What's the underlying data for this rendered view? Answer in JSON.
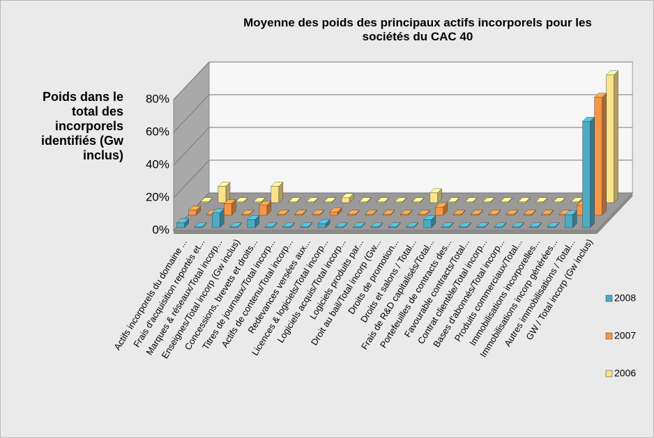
{
  "chart_data": {
    "type": "bar3d",
    "title": "Moyenne des poids des principaux actifs incorporels pour les sociétés du CAC 40",
    "y_label": "Poids dans le total des incorporels identifiés (Gw inclus)",
    "categories": [
      "Actifs incorporels du domaine ...",
      "Frais d'acquisition reportés et...",
      "Marques & réseaux/Total incorp...",
      "Enseignes/Total incorp (Gw inclus)",
      "Concessions, brevets et droits...",
      "Titres de journaux/Total incorp...",
      "Actifs de contenu/Total incorp...",
      "Redevances versées aux...",
      "Licences & logiciels/Total incorp...",
      "Logiciels acquis/Total incorp...",
      "Logiciels produits par...",
      "Droit au bail/Total incorp (Gw...",
      "Droits de promotion...",
      "Droits et salons / Total...",
      "Frais de R&D capitalisés/Total...",
      "Portefeuilles de contracts des...",
      "Favourable contracts/Total...",
      "Contrat clientèle/Total incorp...",
      "Bases d'abonnés/Total incorp...",
      "Produits commerciaux/Total...",
      "Immobilisations incorporelles...",
      "Immobilisations incorp générées...",
      "Autres immobilisations / Total...",
      "GW / Total incorp (Gw inclus)"
    ],
    "series": [
      {
        "name": "2008",
        "color": "#4bacc6",
        "values": [
          3,
          0.5,
          9,
          0.5,
          5,
          0.5,
          0.5,
          0.5,
          2.5,
          0.5,
          0.5,
          0.5,
          0.5,
          0.5,
          5,
          0.5,
          0.5,
          0.5,
          0.5,
          0.5,
          0.5,
          0.5,
          8,
          65
        ]
      },
      {
        "name": "2007",
        "color": "#f79646",
        "values": [
          3,
          0.5,
          7,
          0.5,
          6,
          0.5,
          0.5,
          0.5,
          2,
          0.5,
          0.5,
          0.5,
          0.5,
          0.5,
          5,
          0.5,
          0.5,
          0.5,
          0.5,
          0.5,
          0.5,
          0.5,
          6,
          72
        ]
      },
      {
        "name": "2006",
        "color": "#fbe38a",
        "values": [
          0.5,
          10,
          0.5,
          0.5,
          10,
          0.5,
          0.5,
          0.5,
          3,
          0.5,
          0.5,
          0.5,
          0.5,
          6,
          0.5,
          0.5,
          0.5,
          0.5,
          0.5,
          0.5,
          0.5,
          0.5,
          0.5,
          78
        ]
      }
    ],
    "ylim": [
      0,
      80
    ],
    "yticks": [
      {
        "value": 0,
        "label": "0%"
      },
      {
        "value": 20,
        "label": "20%"
      },
      {
        "value": 40,
        "label": "40%"
      },
      {
        "value": 60,
        "label": "60%"
      },
      {
        "value": 80,
        "label": "80%"
      }
    ],
    "grid": true
  }
}
